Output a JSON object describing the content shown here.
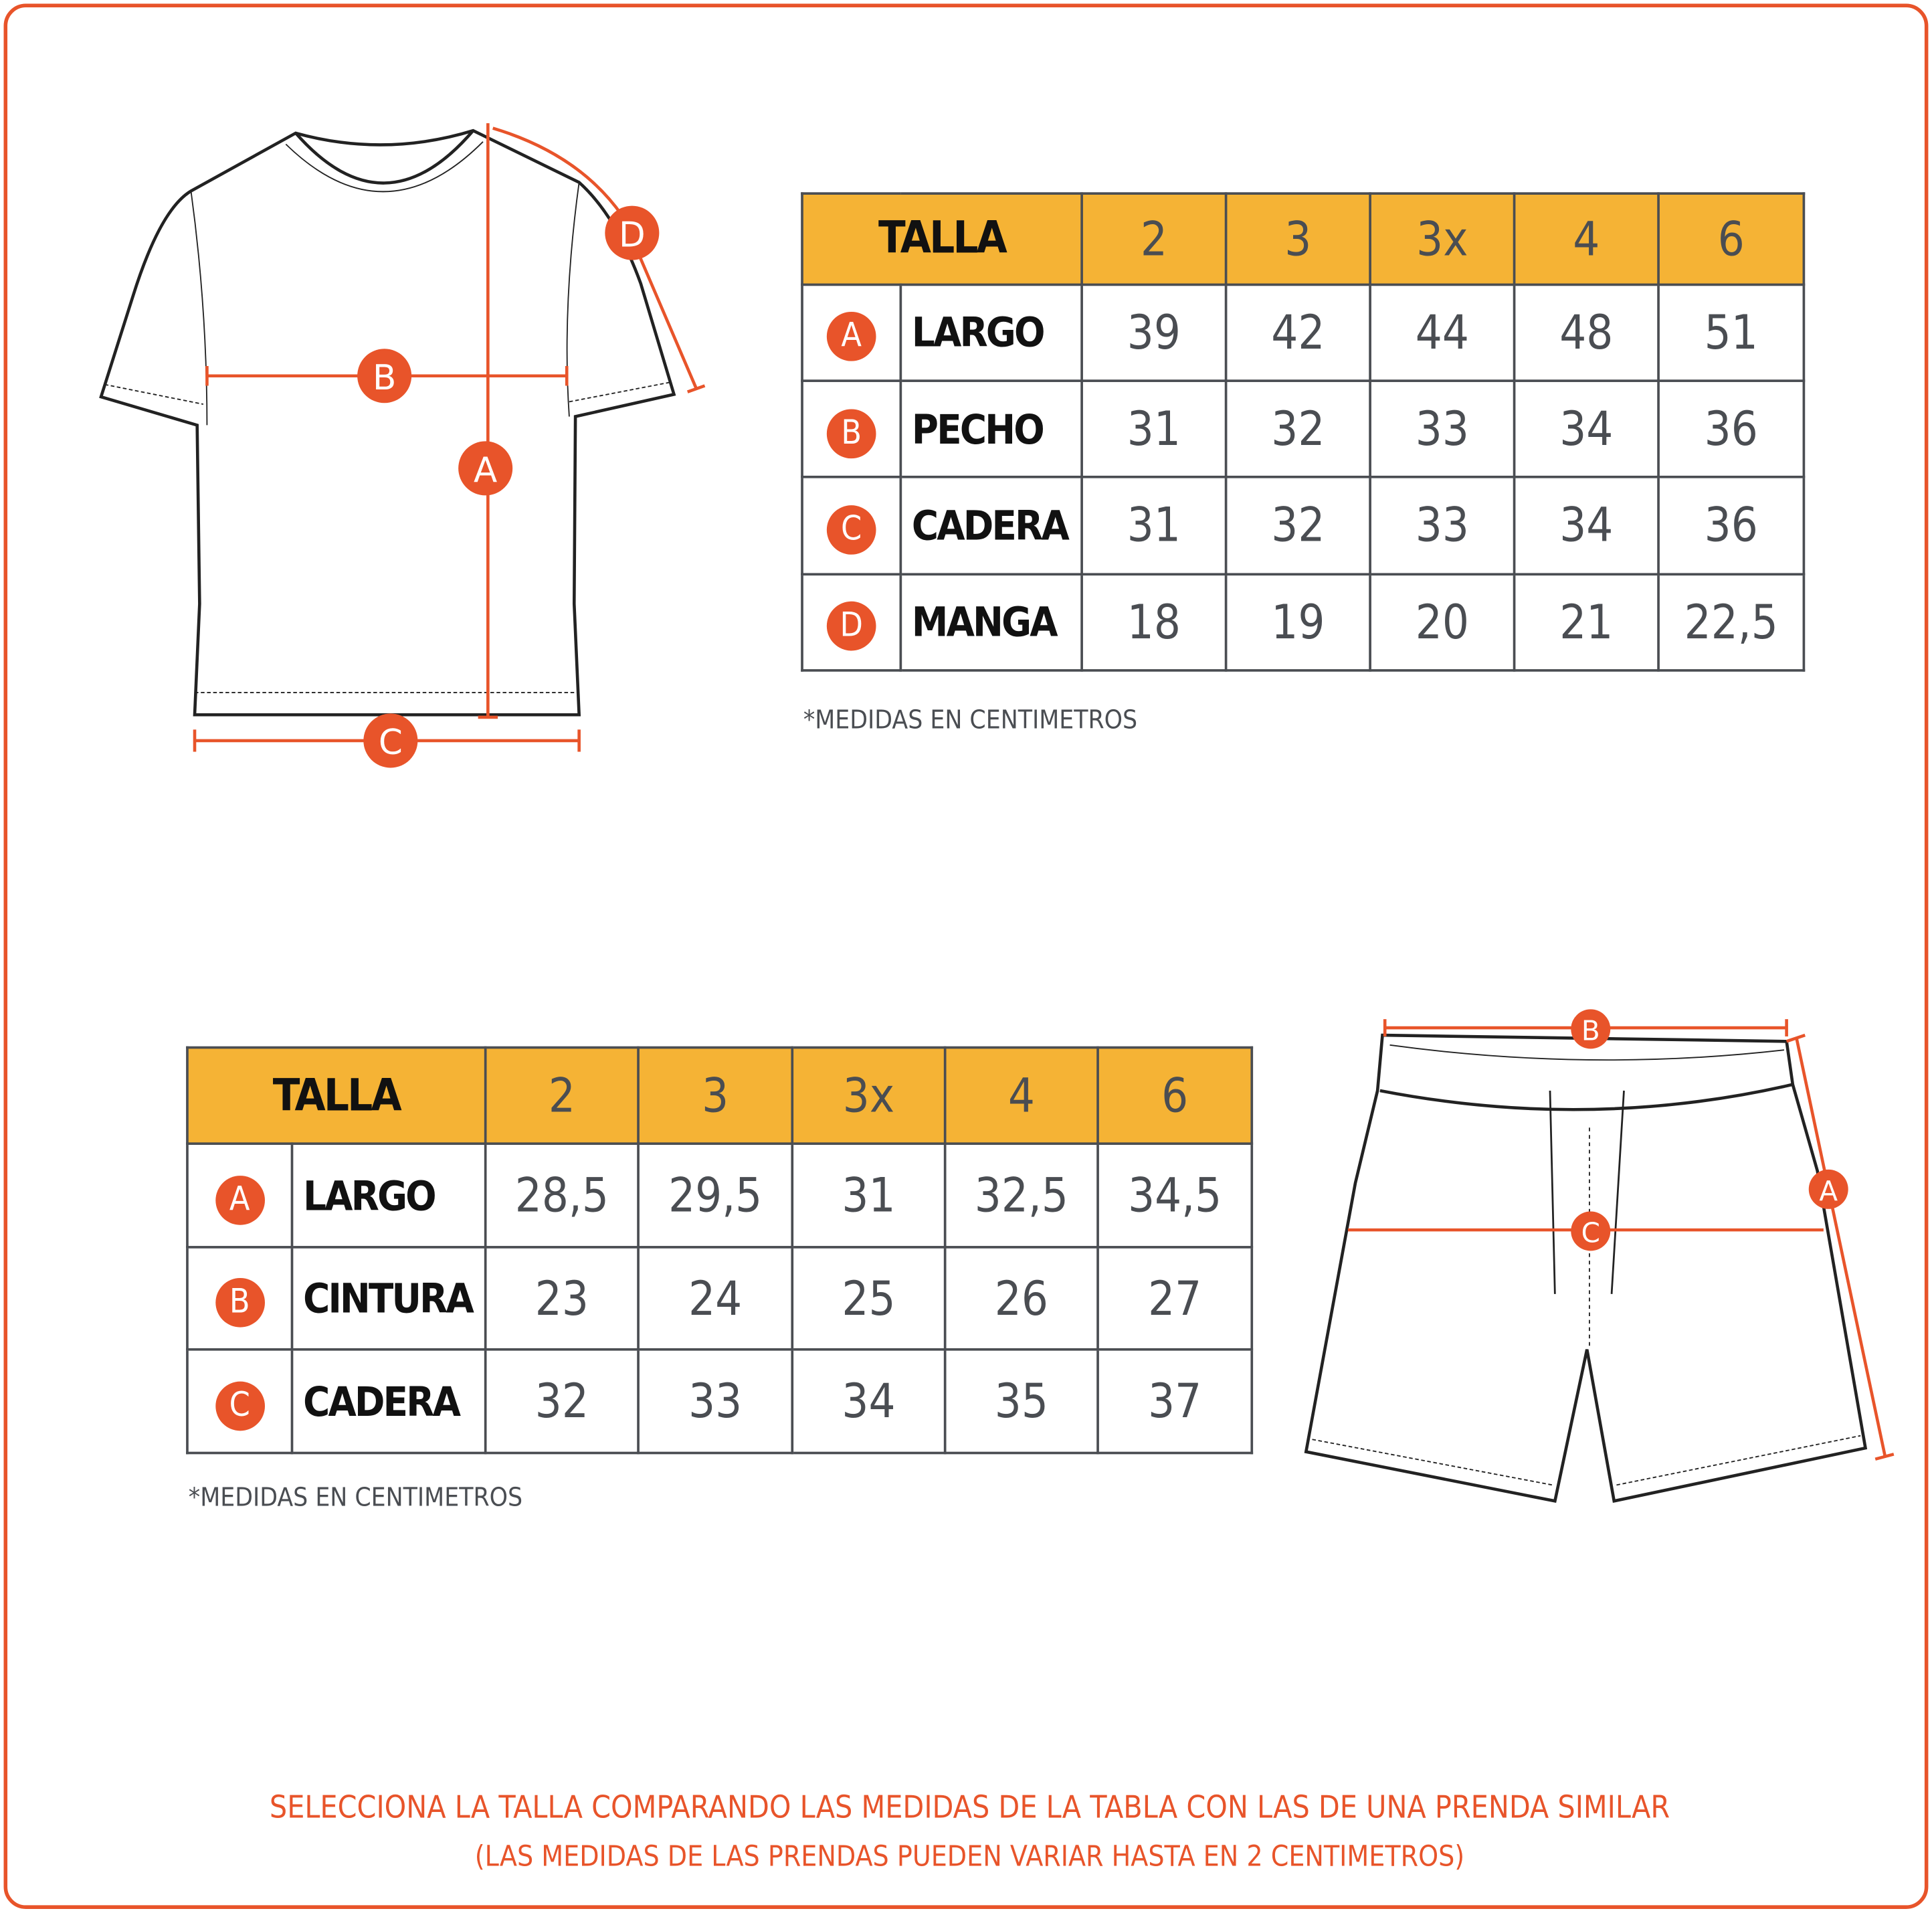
{
  "colors": {
    "accent": "#E8542A",
    "header": "#F5B335",
    "text": "#4A4D52"
  },
  "shirt_table": {
    "header": "TALLA",
    "sizes": [
      "2",
      "3",
      "3x",
      "4",
      "6"
    ],
    "rows": [
      {
        "badge": "A",
        "label": "LARGO",
        "values": [
          "39",
          "42",
          "44",
          "48",
          "51"
        ]
      },
      {
        "badge": "B",
        "label": "PECHO",
        "values": [
          "31",
          "32",
          "33",
          "34",
          "36"
        ]
      },
      {
        "badge": "C",
        "label": "CADERA",
        "values": [
          "31",
          "32",
          "33",
          "34",
          "36"
        ]
      },
      {
        "badge": "D",
        "label": "MANGA",
        "values": [
          "18",
          "19",
          "20",
          "21",
          "22,5"
        ]
      }
    ],
    "note": "*MEDIDAS EN CENTIMETROS"
  },
  "shorts_table": {
    "header": "TALLA",
    "sizes": [
      "2",
      "3",
      "3x",
      "4",
      "6"
    ],
    "rows": [
      {
        "badge": "A",
        "label": "LARGO",
        "values": [
          "28,5",
          "29,5",
          "31",
          "32,5",
          "34,5"
        ]
      },
      {
        "badge": "B",
        "label": "CINTURA",
        "values": [
          "23",
          "24",
          "25",
          "26",
          "27"
        ]
      },
      {
        "badge": "C",
        "label": "CADERA",
        "values": [
          "32",
          "33",
          "34",
          "35",
          "37"
        ]
      }
    ],
    "note": "*MEDIDAS EN CENTIMETROS"
  },
  "shirt_markers": [
    "A",
    "B",
    "C",
    "D"
  ],
  "shorts_markers": [
    "A",
    "B",
    "C"
  ],
  "footer": {
    "line1": "SELECCIONA LA TALLA COMPARANDO LAS MEDIDAS DE LA TABLA CON LAS DE UNA PRENDA SIMILAR",
    "line2": "(LAS MEDIDAS DE LAS PRENDAS PUEDEN VARIAR HASTA EN 2 CENTIMETROS)"
  }
}
